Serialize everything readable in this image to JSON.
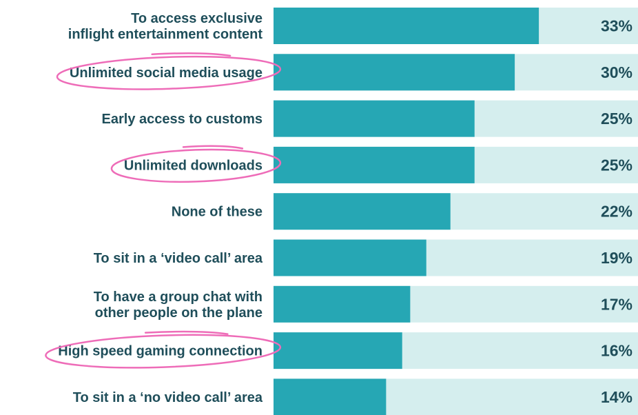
{
  "chart_data": {
    "type": "bar",
    "orientation": "horizontal",
    "xlim": [
      0,
      100
    ],
    "grid": false,
    "categories": [
      [
        "To access exclusive",
        "inflight entertainment content"
      ],
      [
        "Unlimited social media usage"
      ],
      [
        "Early access to customs"
      ],
      [
        "Unlimited downloads"
      ],
      [
        "None of these"
      ],
      [
        "To sit in a ‘video call’ area"
      ],
      [
        "To have a group chat with",
        "other people on the plane"
      ],
      [
        "High speed gaming connection"
      ],
      [
        "To sit in a ‘no video call’ area"
      ]
    ],
    "values": [
      33,
      30,
      25,
      25,
      22,
      19,
      17,
      16,
      14
    ],
    "value_labels": [
      "33%",
      "30%",
      "25%",
      "25%",
      "22%",
      "19%",
      "17%",
      "16%",
      "14%"
    ],
    "highlighted": [
      1,
      3,
      7
    ],
    "colors": {
      "bar": "#26a7b4",
      "track": "#d5eeee",
      "category_text": "#1f4e5a",
      "value_text": "#1f4e5a",
      "annotation": "#ee6cb8"
    }
  }
}
